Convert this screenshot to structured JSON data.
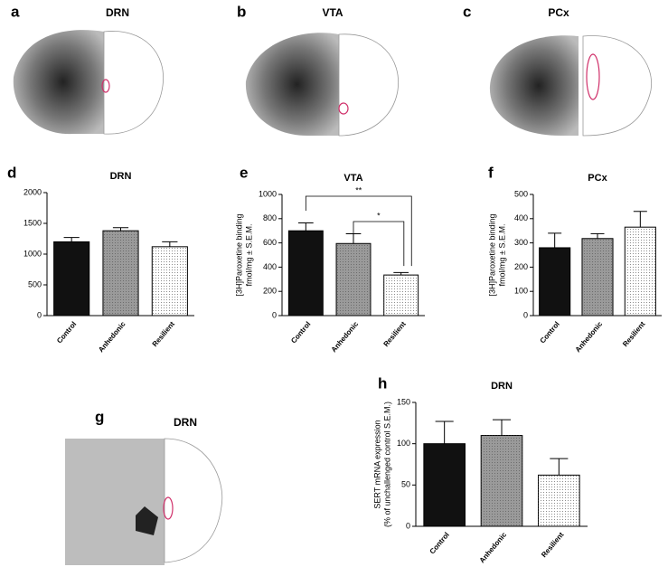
{
  "image_panels": [
    {
      "letter": "a",
      "title": "DRN"
    },
    {
      "letter": "b",
      "title": "VTA"
    },
    {
      "letter": "c",
      "title": "PCx"
    },
    {
      "letter": "g",
      "title": "DRN"
    }
  ],
  "chart_data": [
    {
      "type": "bar",
      "letter": "d",
      "title": "DRN",
      "categories": [
        "Control",
        "Anhedonic",
        "Resilient"
      ],
      "values": [
        1200,
        1380,
        1120
      ],
      "errors": [
        70,
        50,
        80
      ],
      "colors": [
        "#111111",
        "#9a9a9a",
        "#ffffff"
      ],
      "ylim": [
        0,
        2000
      ],
      "yticks": [
        0,
        500,
        1000,
        1500,
        2000
      ]
    },
    {
      "type": "bar",
      "letter": "e",
      "title": "VTA",
      "ylabel": [
        "[3H]Paroxetine binding",
        "fmol/mg ± S.E.M."
      ],
      "categories": [
        "Control",
        "Anhedonic",
        "Resilient"
      ],
      "values": [
        700,
        595,
        335
      ],
      "errors": [
        65,
        80,
        20
      ],
      "colors": [
        "#111111",
        "#9a9a9a",
        "#ffffff"
      ],
      "ylim": [
        0,
        1000
      ],
      "yticks": [
        0,
        200,
        400,
        600,
        800,
        1000
      ],
      "annotations": [
        "**",
        "*"
      ]
    },
    {
      "type": "bar",
      "letter": "f",
      "title": "PCx",
      "ylabel": [
        "[3H]Paroxetine binding",
        "fmol/mg ± S.E.M."
      ],
      "categories": [
        "Control",
        "Anhedonic",
        "Resilient"
      ],
      "values": [
        280,
        318,
        365
      ],
      "errors": [
        60,
        20,
        65
      ],
      "colors": [
        "#111111",
        "#9a9a9a",
        "#ffffff"
      ],
      "ylim": [
        0,
        500
      ],
      "yticks": [
        0,
        100,
        200,
        300,
        400,
        500
      ]
    },
    {
      "type": "bar",
      "letter": "h",
      "title": "DRN",
      "ylabel": [
        "SERT mRNA expression",
        "(% of unchallenged control S.E.M.)"
      ],
      "categories": [
        "Control",
        "Anhedonic",
        "Resilient"
      ],
      "values": [
        100,
        110,
        62
      ],
      "errors": [
        27,
        19,
        20
      ],
      "colors": [
        "#111111",
        "#9a9a9a",
        "#ffffff"
      ],
      "ylim": [
        0,
        150
      ],
      "yticks": [
        0,
        50,
        100,
        150
      ]
    }
  ]
}
